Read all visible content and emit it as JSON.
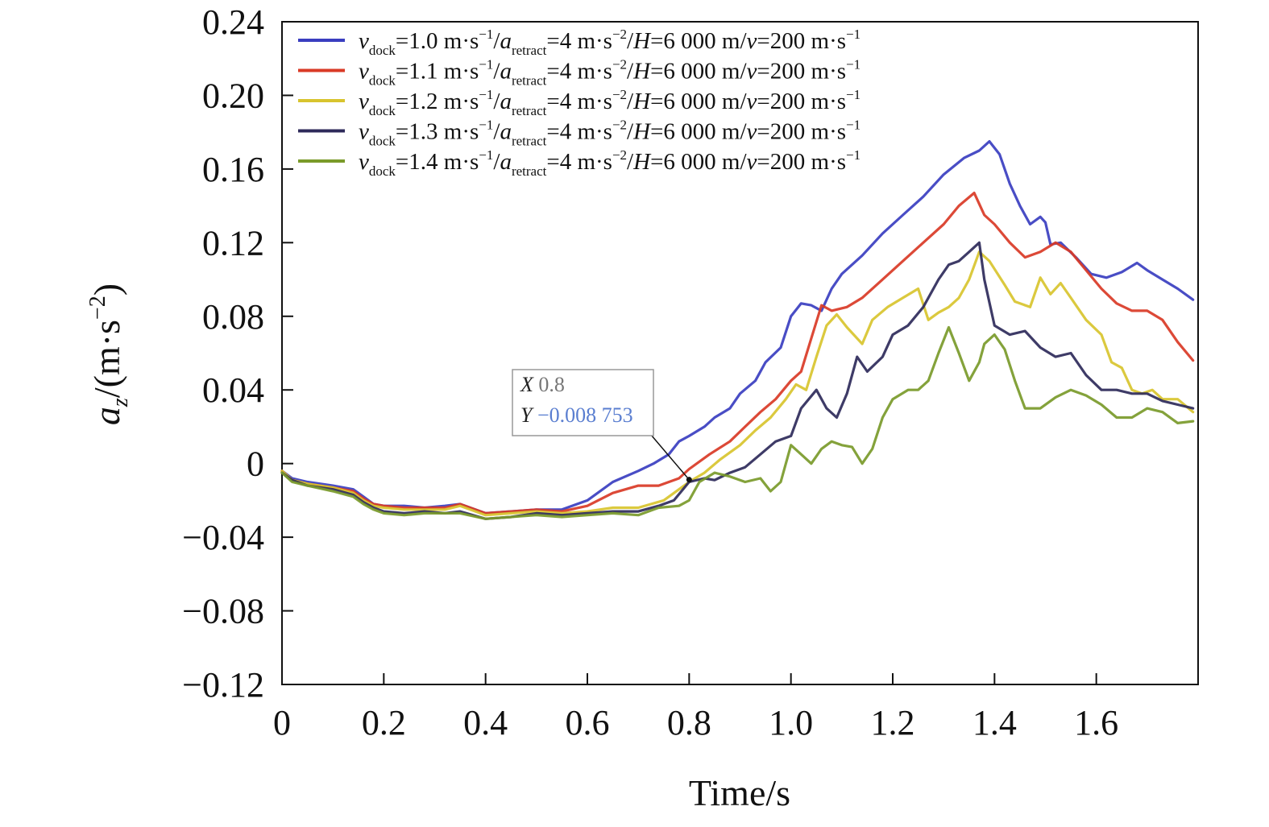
{
  "chart_data": {
    "type": "line",
    "xlabel": "Time/s",
    "ylabel": {
      "main": "a",
      "sub": "z",
      "unit": "/(m·s",
      "sup": "−2",
      "close": ")"
    },
    "xlim": [
      0,
      1.8
    ],
    "ylim": [
      -0.12,
      0.24
    ],
    "x_ticks": [
      0,
      0.2,
      0.4,
      0.6,
      0.8,
      1.0,
      1.2,
      1.4,
      1.6
    ],
    "x_tick_labels": [
      "0",
      "0.2",
      "0.4",
      "0.6",
      "0.8",
      "1.0",
      "1.2",
      "1.4",
      "1.6"
    ],
    "y_ticks": [
      0.24,
      0.2,
      0.16,
      0.12,
      0.08,
      0.04,
      0,
      -0.04,
      -0.08,
      -0.12
    ],
    "y_tick_labels": [
      "0.24",
      "0.20",
      "0.16",
      "0.12",
      "0.08",
      "0.04",
      "0",
      "−0.04",
      "−0.08",
      "−0.12"
    ],
    "legend_position": "top-left",
    "grid": false,
    "series": [
      {
        "name": "v_dock=1.0 m·s−1/a_retract=4 m·s−2/H=6 000 m/v=200 m·s−1",
        "label_parts": {
          "v": "v",
          "vsub": "dock",
          "a": "=1.0 m·s",
          "asup": "−1",
          "b": "/",
          "c": "a",
          "csub": "retract",
          "d": "=4 m·s",
          "dsup": "−2",
          "e": "/",
          "f": "H",
          "g": "=6 000 m/",
          "h": "v",
          "i": "=200 m·s",
          "isup": "−1"
        },
        "color": "#3a3ec0",
        "x": [
          0,
          0.02,
          0.05,
          0.1,
          0.14,
          0.16,
          0.18,
          0.2,
          0.24,
          0.28,
          0.32,
          0.35,
          0.4,
          0.45,
          0.5,
          0.55,
          0.6,
          0.65,
          0.7,
          0.73,
          0.76,
          0.78,
          0.8,
          0.83,
          0.85,
          0.88,
          0.9,
          0.93,
          0.95,
          0.98,
          1.0,
          1.02,
          1.04,
          1.06,
          1.08,
          1.1,
          1.14,
          1.18,
          1.22,
          1.26,
          1.3,
          1.34,
          1.37,
          1.39,
          1.41,
          1.43,
          1.45,
          1.47,
          1.49,
          1.5,
          1.51,
          1.53,
          1.56,
          1.59,
          1.62,
          1.65,
          1.68,
          1.7,
          1.73,
          1.76,
          1.79
        ],
        "y": [
          -0.004,
          -0.008,
          -0.01,
          -0.012,
          -0.014,
          -0.018,
          -0.022,
          -0.023,
          -0.023,
          -0.024,
          -0.023,
          -0.022,
          -0.027,
          -0.026,
          -0.025,
          -0.025,
          -0.02,
          -0.01,
          -0.004,
          0.0,
          0.005,
          0.012,
          0.015,
          0.02,
          0.025,
          0.03,
          0.038,
          0.045,
          0.055,
          0.063,
          0.08,
          0.087,
          0.086,
          0.083,
          0.095,
          0.103,
          0.113,
          0.125,
          0.135,
          0.145,
          0.157,
          0.166,
          0.17,
          0.175,
          0.168,
          0.152,
          0.14,
          0.13,
          0.134,
          0.131,
          0.119,
          0.12,
          0.112,
          0.103,
          0.101,
          0.104,
          0.109,
          0.105,
          0.1,
          0.095,
          0.089
        ]
      },
      {
        "name": "v_dock=1.1 m·s−1/a_retract=4 m·s−2/H=6 000 m/v=200 m·s−1",
        "label_parts": {
          "v": "v",
          "vsub": "dock",
          "a": "=1.1 m·s",
          "asup": "−1",
          "b": "/",
          "c": "a",
          "csub": "retract",
          "d": "=4 m·s",
          "dsup": "−2",
          "e": "/",
          "f": "H",
          "g": "=6 000 m/",
          "h": "v",
          "i": "=200 m·s",
          "isup": "−1"
        },
        "color": "#d93a26",
        "x": [
          0,
          0.02,
          0.05,
          0.1,
          0.14,
          0.16,
          0.18,
          0.2,
          0.24,
          0.28,
          0.32,
          0.35,
          0.4,
          0.45,
          0.5,
          0.55,
          0.6,
          0.65,
          0.7,
          0.74,
          0.78,
          0.8,
          0.84,
          0.88,
          0.91,
          0.94,
          0.97,
          1.0,
          1.02,
          1.04,
          1.06,
          1.08,
          1.11,
          1.14,
          1.18,
          1.22,
          1.26,
          1.3,
          1.33,
          1.36,
          1.38,
          1.4,
          1.43,
          1.46,
          1.49,
          1.52,
          1.55,
          1.58,
          1.61,
          1.64,
          1.67,
          1.7,
          1.73,
          1.76,
          1.79
        ],
        "y": [
          -0.004,
          -0.009,
          -0.011,
          -0.013,
          -0.015,
          -0.019,
          -0.022,
          -0.023,
          -0.024,
          -0.024,
          -0.024,
          -0.022,
          -0.027,
          -0.026,
          -0.025,
          -0.026,
          -0.023,
          -0.016,
          -0.012,
          -0.012,
          -0.008,
          -0.003,
          0.005,
          0.012,
          0.02,
          0.028,
          0.035,
          0.045,
          0.05,
          0.068,
          0.086,
          0.083,
          0.085,
          0.09,
          0.1,
          0.11,
          0.12,
          0.13,
          0.14,
          0.147,
          0.135,
          0.13,
          0.12,
          0.112,
          0.115,
          0.12,
          0.115,
          0.105,
          0.095,
          0.087,
          0.083,
          0.083,
          0.078,
          0.066,
          0.056
        ]
      },
      {
        "name": "v_dock=1.2 m·s−1/a_retract=4 m·s−2/H=6 000 m/v=200 m·s−1",
        "label_parts": {
          "v": "v",
          "vsub": "dock",
          "a": "=1.2 m·s",
          "asup": "−1",
          "b": "/",
          "c": "a",
          "csub": "retract",
          "d": "=4 m·s",
          "dsup": "−2",
          "e": "/",
          "f": "H",
          "g": "=6 000 m/",
          "h": "v",
          "i": "=200 m·s",
          "isup": "−1"
        },
        "color": "#d8c42e",
        "x": [
          0,
          0.02,
          0.05,
          0.1,
          0.14,
          0.16,
          0.18,
          0.2,
          0.24,
          0.28,
          0.32,
          0.35,
          0.4,
          0.45,
          0.5,
          0.55,
          0.6,
          0.65,
          0.7,
          0.75,
          0.78,
          0.8,
          0.83,
          0.86,
          0.9,
          0.93,
          0.96,
          0.99,
          1.01,
          1.03,
          1.05,
          1.07,
          1.09,
          1.11,
          1.14,
          1.16,
          1.19,
          1.22,
          1.25,
          1.27,
          1.29,
          1.31,
          1.33,
          1.35,
          1.37,
          1.39,
          1.42,
          1.44,
          1.47,
          1.49,
          1.51,
          1.53,
          1.55,
          1.58,
          1.61,
          1.63,
          1.65,
          1.67,
          1.69,
          1.71,
          1.73,
          1.76,
          1.79
        ],
        "y": [
          -0.004,
          -0.009,
          -0.011,
          -0.013,
          -0.016,
          -0.02,
          -0.023,
          -0.024,
          -0.025,
          -0.025,
          -0.025,
          -0.023,
          -0.028,
          -0.027,
          -0.026,
          -0.027,
          -0.026,
          -0.024,
          -0.024,
          -0.02,
          -0.014,
          -0.01,
          -0.005,
          0.002,
          0.01,
          0.018,
          0.025,
          0.035,
          0.043,
          0.04,
          0.058,
          0.075,
          0.081,
          0.074,
          0.065,
          0.078,
          0.085,
          0.09,
          0.095,
          0.078,
          0.082,
          0.085,
          0.09,
          0.1,
          0.115,
          0.11,
          0.097,
          0.088,
          0.085,
          0.101,
          0.092,
          0.098,
          0.09,
          0.078,
          0.07,
          0.055,
          0.052,
          0.04,
          0.038,
          0.04,
          0.035,
          0.035,
          0.028
        ]
      },
      {
        "name": "v_dock=1.3 m·s−1/a_retract=4 m·s−2/H=6 000 m/v=200 m·s−1",
        "label_parts": {
          "v": "v",
          "vsub": "dock",
          "a": "=1.3 m·s",
          "asup": "−1",
          "b": "/",
          "c": "a",
          "csub": "retract",
          "d": "=4 m·s",
          "dsup": "−2",
          "e": "/",
          "f": "H",
          "g": "=6 000 m/",
          "h": "v",
          "i": "=200 m·s",
          "isup": "−1"
        },
        "color": "#2e2a5a",
        "x": [
          0,
          0.02,
          0.05,
          0.1,
          0.14,
          0.16,
          0.18,
          0.2,
          0.24,
          0.28,
          0.32,
          0.35,
          0.4,
          0.45,
          0.5,
          0.55,
          0.6,
          0.65,
          0.7,
          0.74,
          0.77,
          0.8,
          0.83,
          0.85,
          0.88,
          0.91,
          0.94,
          0.97,
          1.0,
          1.02,
          1.05,
          1.07,
          1.09,
          1.11,
          1.13,
          1.15,
          1.18,
          1.2,
          1.23,
          1.26,
          1.29,
          1.31,
          1.33,
          1.35,
          1.37,
          1.38,
          1.4,
          1.43,
          1.46,
          1.49,
          1.52,
          1.55,
          1.58,
          1.61,
          1.64,
          1.67,
          1.7,
          1.73,
          1.76,
          1.79
        ],
        "y": [
          -0.005,
          -0.009,
          -0.012,
          -0.014,
          -0.017,
          -0.021,
          -0.024,
          -0.026,
          -0.027,
          -0.026,
          -0.027,
          -0.026,
          -0.03,
          -0.029,
          -0.027,
          -0.028,
          -0.027,
          -0.026,
          -0.026,
          -0.023,
          -0.02,
          -0.01,
          -0.008,
          -0.009,
          -0.005,
          -0.002,
          0.005,
          0.012,
          0.015,
          0.03,
          0.04,
          0.03,
          0.025,
          0.038,
          0.058,
          0.05,
          0.058,
          0.07,
          0.075,
          0.085,
          0.1,
          0.108,
          0.11,
          0.115,
          0.12,
          0.1,
          0.075,
          0.07,
          0.072,
          0.063,
          0.058,
          0.06,
          0.048,
          0.04,
          0.04,
          0.038,
          0.038,
          0.034,
          0.032,
          0.03
        ]
      },
      {
        "name": "v_dock=1.4 m·s−1/a_retract=4 m·s−2/H=6 000 m/v=200 m·s−1",
        "label_parts": {
          "v": "v",
          "vsub": "dock",
          "a": "=1.4 m·s",
          "asup": "−1",
          "b": "/",
          "c": "a",
          "csub": "retract",
          "d": "=4 m·s",
          "dsup": "−2",
          "e": "/",
          "f": "H",
          "g": "=6 000 m/",
          "h": "v",
          "i": "=200 m·s",
          "isup": "−1"
        },
        "color": "#7a9a2a",
        "x": [
          0,
          0.02,
          0.05,
          0.1,
          0.14,
          0.16,
          0.18,
          0.2,
          0.24,
          0.28,
          0.32,
          0.35,
          0.4,
          0.45,
          0.5,
          0.55,
          0.6,
          0.65,
          0.7,
          0.74,
          0.78,
          0.8,
          0.82,
          0.85,
          0.88,
          0.91,
          0.94,
          0.96,
          0.98,
          1.0,
          1.02,
          1.04,
          1.06,
          1.08,
          1.1,
          1.12,
          1.14,
          1.16,
          1.18,
          1.2,
          1.23,
          1.25,
          1.27,
          1.29,
          1.31,
          1.33,
          1.35,
          1.37,
          1.38,
          1.4,
          1.42,
          1.44,
          1.46,
          1.49,
          1.52,
          1.55,
          1.58,
          1.61,
          1.64,
          1.67,
          1.7,
          1.73,
          1.76,
          1.79
        ],
        "y": [
          -0.005,
          -0.01,
          -0.012,
          -0.015,
          -0.018,
          -0.022,
          -0.025,
          -0.027,
          -0.028,
          -0.027,
          -0.027,
          -0.027,
          -0.03,
          -0.029,
          -0.028,
          -0.029,
          -0.028,
          -0.027,
          -0.028,
          -0.024,
          -0.023,
          -0.02,
          -0.01,
          -0.005,
          -0.007,
          -0.01,
          -0.008,
          -0.015,
          -0.01,
          0.01,
          0.005,
          0.0,
          0.008,
          0.012,
          0.01,
          0.009,
          0.0,
          0.008,
          0.025,
          0.035,
          0.04,
          0.04,
          0.045,
          0.06,
          0.074,
          0.06,
          0.045,
          0.055,
          0.065,
          0.07,
          0.062,
          0.045,
          0.03,
          0.03,
          0.036,
          0.04,
          0.037,
          0.032,
          0.025,
          0.025,
          0.03,
          0.028,
          0.022,
          0.023
        ]
      }
    ],
    "annotation": {
      "x_label": "X",
      "x_value": "0.8",
      "y_label": "Y",
      "y_value": "−0.008 753",
      "point": [
        0.8,
        -0.008753
      ]
    }
  }
}
